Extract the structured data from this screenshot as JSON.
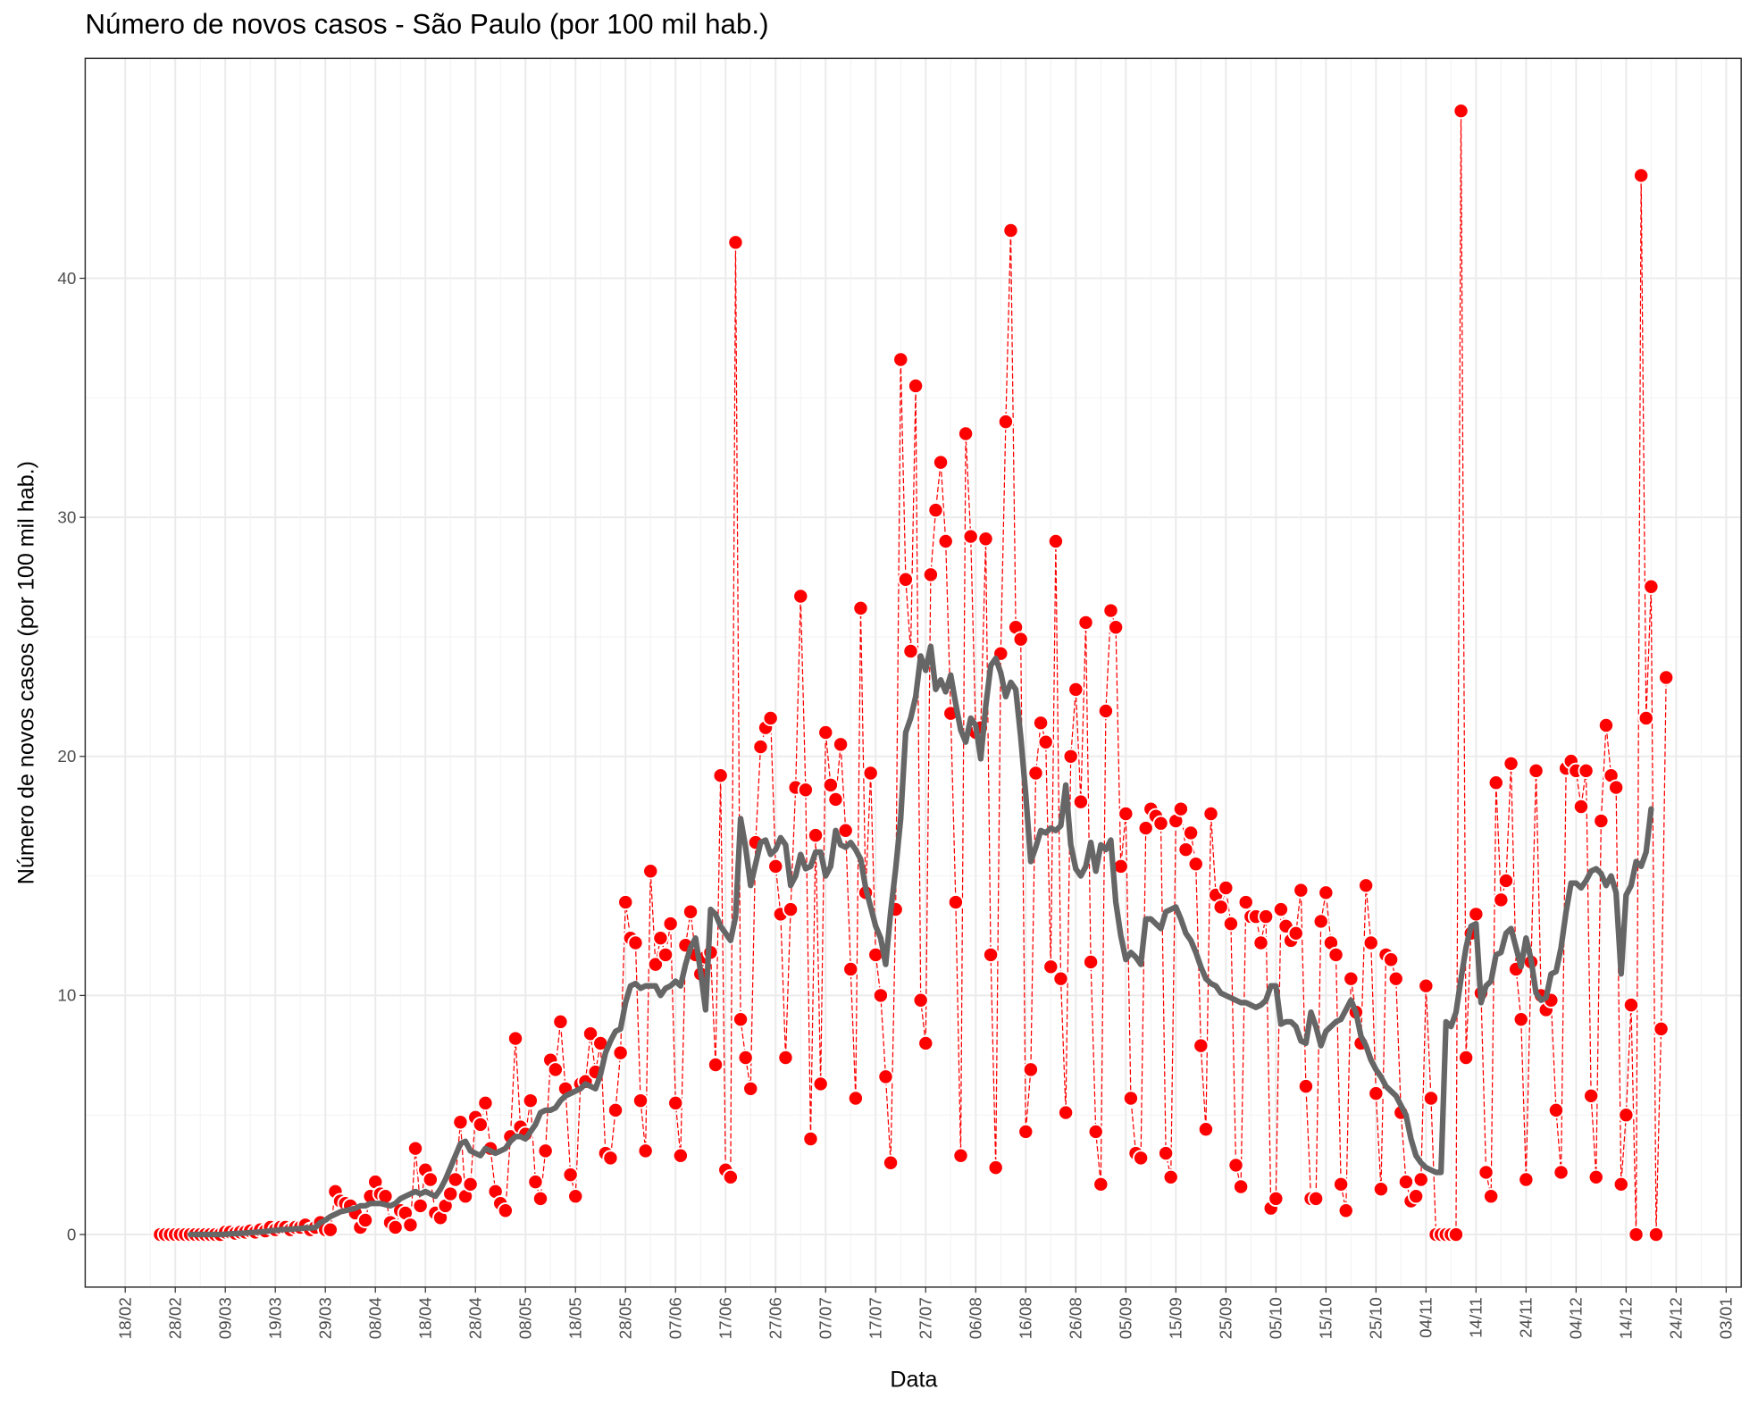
{
  "chart_data": {
    "type": "line",
    "title": "Número de novos casos - São Paulo (por 100 mil hab.)",
    "x_label": "Data",
    "y_label": "Número de novos casos (por 100 mil hab.)",
    "xlim": [
      "10/02",
      "06/01"
    ],
    "xticks": [
      "18/02",
      "28/02",
      "09/03",
      "19/03",
      "29/03",
      "08/04",
      "18/04",
      "28/04",
      "08/05",
      "18/05",
      "28/05",
      "07/06",
      "17/06",
      "27/06",
      "07/07",
      "17/07",
      "27/07",
      "06/08",
      "16/08",
      "26/08",
      "05/09",
      "15/09",
      "25/09",
      "05/10",
      "15/10",
      "25/10",
      "04/11",
      "14/11",
      "24/11",
      "04/12",
      "14/12",
      "24/12",
      "03/01"
    ],
    "ylim": [
      -2.2,
      49.2
    ],
    "yticks": [
      0,
      10,
      20,
      30,
      40
    ],
    "grid": true,
    "x": [
      "25/02",
      "26/02",
      "27/02",
      "28/02",
      "29/02",
      "01/03",
      "02/03",
      "03/03",
      "04/03",
      "05/03",
      "06/03",
      "07/03",
      "08/03",
      "09/03",
      "10/03",
      "11/03",
      "12/03",
      "13/03",
      "14/03",
      "15/03",
      "16/03",
      "17/03",
      "18/03",
      "19/03",
      "20/03",
      "21/03",
      "22/03",
      "23/03",
      "24/03",
      "25/03",
      "26/03",
      "27/03",
      "28/03",
      "29/03",
      "30/03",
      "31/03",
      "01/04",
      "02/04",
      "03/04",
      "04/04",
      "05/04",
      "06/04",
      "07/04",
      "08/04",
      "09/04",
      "10/04",
      "11/04",
      "12/04",
      "13/04",
      "14/04",
      "15/04",
      "16/04",
      "17/04",
      "18/04",
      "19/04",
      "20/04",
      "21/04",
      "22/04",
      "23/04",
      "24/04",
      "25/04",
      "26/04",
      "27/04",
      "28/04",
      "29/04",
      "30/04",
      "01/05",
      "02/05",
      "03/05",
      "04/05",
      "05/05",
      "06/05",
      "07/05",
      "08/05",
      "09/05",
      "10/05",
      "11/05",
      "12/05",
      "13/05",
      "14/05",
      "15/05",
      "16/05",
      "17/05",
      "18/05",
      "19/05",
      "20/05",
      "21/05",
      "22/05",
      "23/05",
      "24/05",
      "25/05",
      "26/05",
      "27/05",
      "28/05",
      "29/05",
      "30/05",
      "31/05",
      "01/06",
      "02/06",
      "03/06",
      "04/06",
      "05/06",
      "06/06",
      "07/06",
      "08/06",
      "09/06",
      "10/06",
      "11/06",
      "12/06",
      "13/06",
      "14/06",
      "15/06",
      "16/06",
      "17/06",
      "18/06",
      "19/06",
      "20/06",
      "21/06",
      "22/06",
      "23/06",
      "24/06",
      "25/06",
      "26/06",
      "27/06",
      "28/06",
      "29/06",
      "30/06",
      "01/07",
      "02/07",
      "03/07",
      "04/07",
      "05/07",
      "06/07",
      "07/07",
      "08/07",
      "09/07",
      "10/07",
      "11/07",
      "12/07",
      "13/07",
      "14/07",
      "15/07",
      "16/07",
      "17/07",
      "18/07",
      "19/07",
      "20/07",
      "21/07",
      "22/07",
      "23/07",
      "24/07",
      "25/07",
      "26/07",
      "27/07",
      "28/07",
      "29/07",
      "30/07",
      "31/07",
      "01/08",
      "02/08",
      "03/08",
      "04/08",
      "05/08",
      "06/08",
      "07/08",
      "08/08",
      "09/08",
      "10/08",
      "11/08",
      "12/08",
      "13/08",
      "14/08",
      "15/08",
      "16/08",
      "17/08",
      "18/08",
      "19/08",
      "20/08",
      "21/08",
      "22/08",
      "23/08",
      "24/08",
      "25/08",
      "26/08",
      "27/08",
      "28/08",
      "29/08",
      "30/08",
      "31/08",
      "01/09",
      "02/09",
      "03/09",
      "04/09",
      "05/09",
      "06/09",
      "07/09",
      "08/09",
      "09/09",
      "10/09",
      "11/09",
      "12/09",
      "13/09",
      "14/09",
      "15/09",
      "16/09",
      "17/09",
      "18/09",
      "19/09",
      "20/09",
      "21/09",
      "22/09",
      "23/09",
      "24/09",
      "25/09",
      "26/09",
      "27/09",
      "28/09",
      "29/09",
      "30/09",
      "01/10",
      "02/10",
      "03/10",
      "04/10",
      "05/10",
      "06/10",
      "07/10",
      "08/10",
      "09/10",
      "10/10",
      "11/10",
      "12/10",
      "13/10",
      "14/10",
      "15/10",
      "16/10",
      "17/10",
      "18/10",
      "19/10",
      "20/10",
      "21/10",
      "22/10",
      "23/10",
      "24/10",
      "25/10",
      "26/10",
      "27/10",
      "28/10",
      "29/10",
      "30/10",
      "31/10",
      "01/11",
      "02/11",
      "03/11",
      "04/11",
      "05/11",
      "06/11",
      "07/11",
      "08/11",
      "09/11",
      "10/11",
      "11/11",
      "12/11",
      "13/11",
      "14/11",
      "15/11",
      "16/11",
      "17/11",
      "18/11",
      "19/11",
      "20/11",
      "21/11",
      "22/11",
      "23/11",
      "24/11",
      "25/11",
      "26/11",
      "27/11",
      "28/11",
      "29/11",
      "30/11",
      "01/12",
      "02/12",
      "03/12",
      "04/12",
      "05/12",
      "06/12",
      "07/12",
      "08/12",
      "09/12",
      "10/12",
      "11/12",
      "12/12",
      "13/12",
      "14/12",
      "15/12",
      "16/12",
      "17/12",
      "18/12",
      "19/12",
      "20/12",
      "21/12",
      "22/12"
    ],
    "series": [
      {
        "color": "#ff0000",
        "markers": true,
        "line": "dashed",
        "values": [
          0,
          0,
          0,
          0,
          0,
          0,
          0,
          0,
          0,
          0,
          0,
          0,
          0,
          0.1,
          0.1,
          0.05,
          0.1,
          0.1,
          0.15,
          0.1,
          0.2,
          0.15,
          0.3,
          0.2,
          0.3,
          0.3,
          0.2,
          0.3,
          0.3,
          0.4,
          0.2,
          0.3,
          0.5,
          0.2,
          0.2,
          1.8,
          1.4,
          1.3,
          1.2,
          0.9,
          0.3,
          0.6,
          1.6,
          2.2,
          1.7,
          1.6,
          0.5,
          0.3,
          1.0,
          0.9,
          0.4,
          3.6,
          1.2,
          2.7,
          2.3,
          0.9,
          0.7,
          1.2,
          1.7,
          2.3,
          4.7,
          1.6,
          2.1,
          4.9,
          4.6,
          5.5,
          3.6,
          1.8,
          1.3,
          1.0,
          4.1,
          8.2,
          4.5,
          4.2,
          5.6,
          2.2,
          1.5,
          3.5,
          7.3,
          6.9,
          8.9,
          6.1,
          2.5,
          1.6,
          6.3,
          6.4,
          8.4,
          6.8,
          8.0,
          3.4,
          3.2,
          5.2,
          7.6,
          13.9,
          12.4,
          12.2,
          5.6,
          3.5,
          15.2,
          11.3,
          12.4,
          11.7,
          13.0,
          5.5,
          3.3,
          12.1,
          13.5,
          11.7,
          10.9,
          11.6,
          11.8,
          7.1,
          19.2,
          2.7,
          2.4,
          41.5,
          9.0,
          7.4,
          6.1,
          16.4,
          20.4,
          21.2,
          21.6,
          15.4,
          13.4,
          7.4,
          13.6,
          18.7,
          26.7,
          18.6,
          4.0,
          16.7,
          6.3,
          21.0,
          18.8,
          18.2,
          20.5,
          16.9,
          11.1,
          5.7,
          26.2,
          14.3,
          19.3,
          11.7,
          10.0,
          6.6,
          3.0,
          13.6,
          36.6,
          27.4,
          24.4,
          35.5,
          9.8,
          8.0,
          27.6,
          30.3,
          32.3,
          29.0,
          21.8,
          13.9,
          3.3,
          33.5,
          29.2,
          21.0,
          21.2,
          29.1,
          11.7,
          2.8,
          24.3,
          34.0,
          42.0,
          25.4,
          24.9,
          4.3,
          6.9,
          19.3,
          21.4,
          20.6,
          11.2,
          29.0,
          10.7,
          5.1,
          20.0,
          22.8,
          18.1,
          25.6,
          11.4,
          4.3,
          2.1,
          21.9,
          26.1,
          25.4,
          15.4,
          17.6,
          5.7,
          3.4,
          3.2,
          17.0,
          17.8,
          17.5,
          17.2,
          3.4,
          2.4,
          17.3,
          17.8,
          16.1,
          16.8,
          15.5,
          7.9,
          4.4,
          17.6,
          14.2,
          13.7,
          14.5,
          13.0,
          2.9,
          2.0,
          13.9,
          13.3,
          13.3,
          12.2,
          13.3,
          1.1,
          1.5,
          13.6,
          12.9,
          12.3,
          12.6,
          14.4,
          6.2,
          1.5,
          1.5,
          13.1,
          14.3,
          12.2,
          11.7,
          2.1,
          1.0,
          10.7,
          9.3,
          8.0,
          14.6,
          12.2,
          5.9,
          1.9,
          11.7,
          11.5,
          10.7,
          5.1,
          2.2,
          1.4,
          1.6,
          2.3,
          10.4,
          5.7,
          0,
          0,
          0,
          0,
          0,
          47.0,
          7.4,
          12.6,
          13.4,
          10.1,
          2.6,
          1.6,
          18.9,
          14.0,
          14.8,
          19.7,
          11.1,
          9.0,
          2.3,
          11.4,
          19.4,
          10.0,
          9.4,
          9.8,
          5.2,
          2.6,
          19.5,
          19.8,
          19.4,
          17.9,
          19.4,
          5.8,
          2.4,
          17.3,
          21.3,
          19.2,
          18.7,
          2.1,
          5.0,
          9.6,
          0,
          44.3,
          21.6,
          27.1,
          0,
          8.6,
          23.3
        ]
      },
      {
        "color": "#666666",
        "markers": false,
        "line": "solid",
        "values": [
          null,
          null,
          null,
          null,
          null,
          null,
          0,
          0,
          0,
          0,
          0,
          0,
          0,
          0.01,
          0.03,
          0.04,
          0.05,
          0.06,
          0.08,
          0.09,
          0.11,
          0.12,
          0.16,
          0.17,
          0.2,
          0.21,
          0.22,
          0.24,
          0.25,
          0.28,
          0.27,
          0.29,
          0.5,
          0.6,
          0.75,
          0.85,
          0.95,
          1.0,
          1.05,
          1.1,
          1.2,
          1.2,
          1.3,
          1.3,
          1.3,
          1.25,
          1.2,
          1.3,
          1.5,
          1.6,
          1.7,
          1.8,
          1.7,
          1.8,
          1.7,
          1.6,
          1.9,
          2.3,
          2.8,
          3.3,
          3.8,
          3.9,
          3.5,
          3.4,
          3.3,
          3.6,
          3.5,
          3.4,
          3.5,
          3.6,
          3.9,
          4.1,
          4.1,
          4.0,
          4.3,
          4.6,
          5.1,
          5.2,
          5.2,
          5.3,
          5.6,
          5.8,
          5.9,
          6.0,
          6.1,
          6.3,
          6.2,
          6.1,
          6.7,
          7.6,
          8.1,
          8.5,
          8.6,
          9.7,
          10.4,
          10.5,
          10.3,
          10.4,
          10.4,
          10.4,
          10.0,
          10.3,
          10.4,
          10.6,
          10.4,
          11.3,
          12.0,
          12.4,
          11.0,
          9.4,
          13.6,
          13.4,
          12.9,
          12.6,
          12.3,
          13.3,
          17.4,
          16.2,
          14.6,
          15.5,
          16.4,
          16.5,
          15.9,
          16.1,
          16.6,
          16.3,
          14.6,
          15.0,
          15.9,
          15.3,
          15.4,
          16.0,
          16.0,
          15.0,
          15.4,
          16.9,
          16.3,
          16.2,
          16.4,
          16.1,
          15.7,
          14.5,
          13.7,
          12.9,
          12.4,
          11.3,
          13.5,
          15.3,
          17.4,
          21.0,
          21.6,
          22.5,
          24.2,
          23.6,
          24.6,
          22.8,
          23.2,
          22.7,
          23.4,
          22.2,
          21.1,
          20.6,
          21.6,
          21.3,
          19.9,
          22.1,
          23.8,
          24.1,
          23.5,
          22.5,
          23.1,
          22.8,
          20.8,
          18.4,
          15.6,
          16.2,
          16.9,
          16.8,
          17.0,
          16.9,
          17.1,
          18.8,
          16.3,
          15.3,
          15.0,
          15.4,
          16.4,
          15.2,
          16.3,
          16.1,
          16.5,
          13.9,
          12.5,
          11.5,
          11.8,
          11.6,
          11.3,
          13.2,
          13.2,
          13.0,
          12.8,
          13.5,
          13.6,
          13.7,
          13.2,
          12.6,
          12.3,
          11.8,
          11.2,
          10.7,
          10.5,
          10.4,
          10.1,
          10.0,
          9.9,
          9.8,
          9.7,
          9.7,
          9.6,
          9.5,
          9.6,
          9.8,
          10.4,
          10.4,
          8.8,
          8.9,
          8.9,
          8.7,
          8.1,
          8.0,
          9.3,
          8.7,
          7.9,
          8.5,
          8.7,
          8.9,
          9.0,
          9.4,
          9.8,
          9.3,
          8.3,
          7.9,
          7.3,
          6.9,
          6.6,
          6.2,
          6.0,
          5.8,
          5.4,
          5.0,
          4.0,
          3.3,
          3.0,
          2.8,
          2.7,
          2.6,
          2.6,
          8.9,
          8.7,
          9.3,
          10.7,
          12.0,
          12.9,
          13.0,
          9.7,
          10.4,
          10.6,
          11.7,
          11.8,
          12.6,
          12.8,
          12.0,
          11.2,
          12.4,
          11.5,
          10.1,
          9.8,
          9.9,
          10.9,
          11.0,
          12.0,
          13.5,
          14.7,
          14.7,
          14.5,
          14.8,
          15.2,
          15.3,
          15.1,
          14.6,
          15.0,
          14.3,
          10.9,
          14.2,
          14.6,
          15.6,
          15.4,
          16.0,
          17.8,
          null,
          null,
          null
        ]
      }
    ]
  }
}
